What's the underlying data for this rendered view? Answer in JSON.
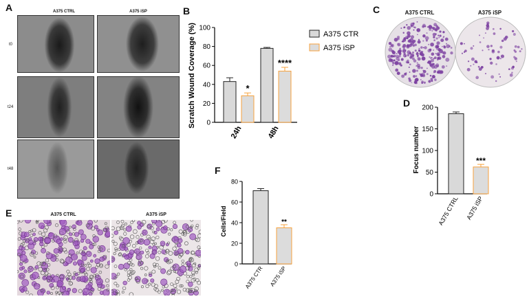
{
  "figure": {
    "panels": {
      "a": "A",
      "b": "B",
      "c": "C",
      "d": "D",
      "e": "E",
      "f": "F"
    }
  },
  "panel_a": {
    "columns": [
      "A375 CTRL",
      "A375 iSP"
    ],
    "rows": [
      "t0",
      "t24",
      "t48"
    ]
  },
  "panel_c": {
    "labels": [
      "A375 CTRL",
      "A375 iSP"
    ]
  },
  "panel_e": {
    "labels": [
      "A375 CTRL",
      "A375 iSP"
    ]
  },
  "colors": {
    "ctrl": "#d9d9d9",
    "isp": "#f7a23c",
    "isp_fill": "#dcdcdc",
    "stain": "#7b3fa0"
  },
  "chart_data": [
    {
      "id": "B",
      "type": "bar",
      "categories": [
        "24h",
        "48h"
      ],
      "series": [
        {
          "name": "A375 CTR",
          "values": [
            43,
            78
          ],
          "errors": [
            4,
            1
          ]
        },
        {
          "name": "A375 iSP",
          "values": [
            28,
            54
          ],
          "errors": [
            3,
            4
          ]
        }
      ],
      "annotations": [
        [
          "",
          "*"
        ],
        [
          "",
          "****"
        ]
      ],
      "title": "",
      "xlabel": "",
      "ylabel": "Scratch Wound Coverage (%)",
      "ylim": [
        0,
        100
      ],
      "yticks": [
        0,
        20,
        40,
        60,
        80,
        100
      ],
      "legend": "top-right"
    },
    {
      "id": "D",
      "type": "bar",
      "categories": [
        "A375 CTRL",
        "A375 iSP"
      ],
      "values": [
        185,
        62
      ],
      "errors": [
        4,
        6
      ],
      "annotations": [
        "",
        "***"
      ],
      "ylabel": "Focus number",
      "ylim": [
        0,
        200
      ],
      "yticks": [
        0,
        50,
        100,
        150,
        200
      ]
    },
    {
      "id": "F",
      "type": "bar",
      "categories": [
        "A375 CTR",
        "A375 iSP"
      ],
      "values": [
        71,
        35
      ],
      "errors": [
        2,
        3
      ],
      "annotations": [
        "",
        "**"
      ],
      "ylabel": "Cells/Field",
      "ylim": [
        0,
        80
      ],
      "yticks": [
        0,
        20,
        40,
        60,
        80
      ]
    }
  ]
}
